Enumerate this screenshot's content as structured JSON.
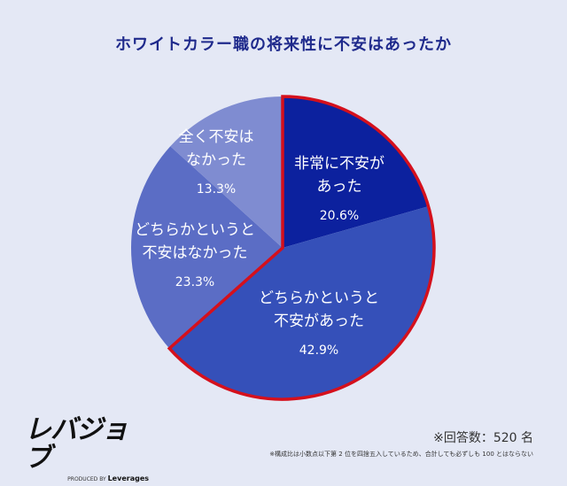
{
  "chart_data": {
    "type": "pie",
    "title": "ホワイトカラー職の将来性に不安はあったか",
    "start": "12 o'clock, clockwise",
    "slices": [
      {
        "label": [
          "非常に不安が",
          "あった"
        ],
        "value": 20.6,
        "value_label": "20.6%",
        "color": "#0c219e",
        "highlight": true
      },
      {
        "label": [
          "どちらかというと",
          "不安があった"
        ],
        "value": 42.9,
        "value_label": "42.9%",
        "color": "#3550b9",
        "highlight": true
      },
      {
        "label": [
          "どちらかというと",
          "不安はなかった"
        ],
        "value": 23.3,
        "value_label": "23.3%",
        "color": "#5b6dc5",
        "highlight": false
      },
      {
        "label": [
          "全く不安は",
          "なかった"
        ],
        "value": 13.3,
        "value_label": "13.3%",
        "color": "#7f8cd1",
        "highlight": false
      }
    ],
    "highlight_color": "#d5101c"
  },
  "footer": {
    "logo_text": "レバジョブ",
    "logo_produced": "PRODUCED BY",
    "logo_brand": "Leverages",
    "respondents": "※回答数：520 名",
    "note": "※構成比は小数点以下第 2 位を四捨五入しているため、合計しても必ずしも 100 とはならない"
  }
}
